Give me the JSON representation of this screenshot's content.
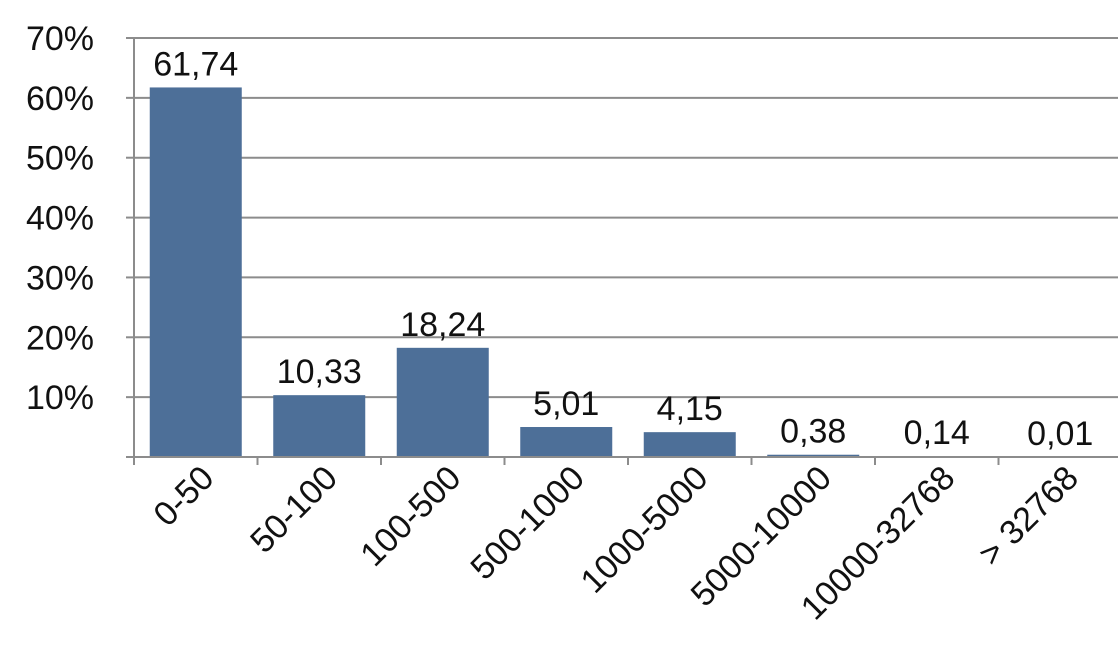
{
  "chart_data": {
    "type": "bar",
    "title": "",
    "xlabel": "",
    "ylabel": "",
    "categories": [
      "0-50",
      "50-100",
      "100-500",
      "500-1000",
      "1000-5000",
      "5000-10000",
      "10000-32768",
      "> 32768"
    ],
    "values": [
      61.74,
      10.33,
      18.24,
      5.01,
      4.15,
      0.38,
      0.14,
      0.01
    ],
    "value_labels": [
      "61,74",
      "10,33",
      "18,24",
      "5,01",
      "4,15",
      "0,38",
      "0,14",
      "0,01"
    ],
    "ylim": [
      0,
      70
    ],
    "yticks": [
      10,
      20,
      30,
      40,
      50,
      60,
      70
    ],
    "ytick_labels": [
      "10%",
      "20%",
      "30%",
      "40%",
      "50%",
      "60%",
      "70%"
    ],
    "grid": true,
    "legend": "none",
    "colors": {
      "bar": "#4d6f98",
      "grid": "#8c8c8c",
      "axis": "#8c8c8c"
    }
  }
}
